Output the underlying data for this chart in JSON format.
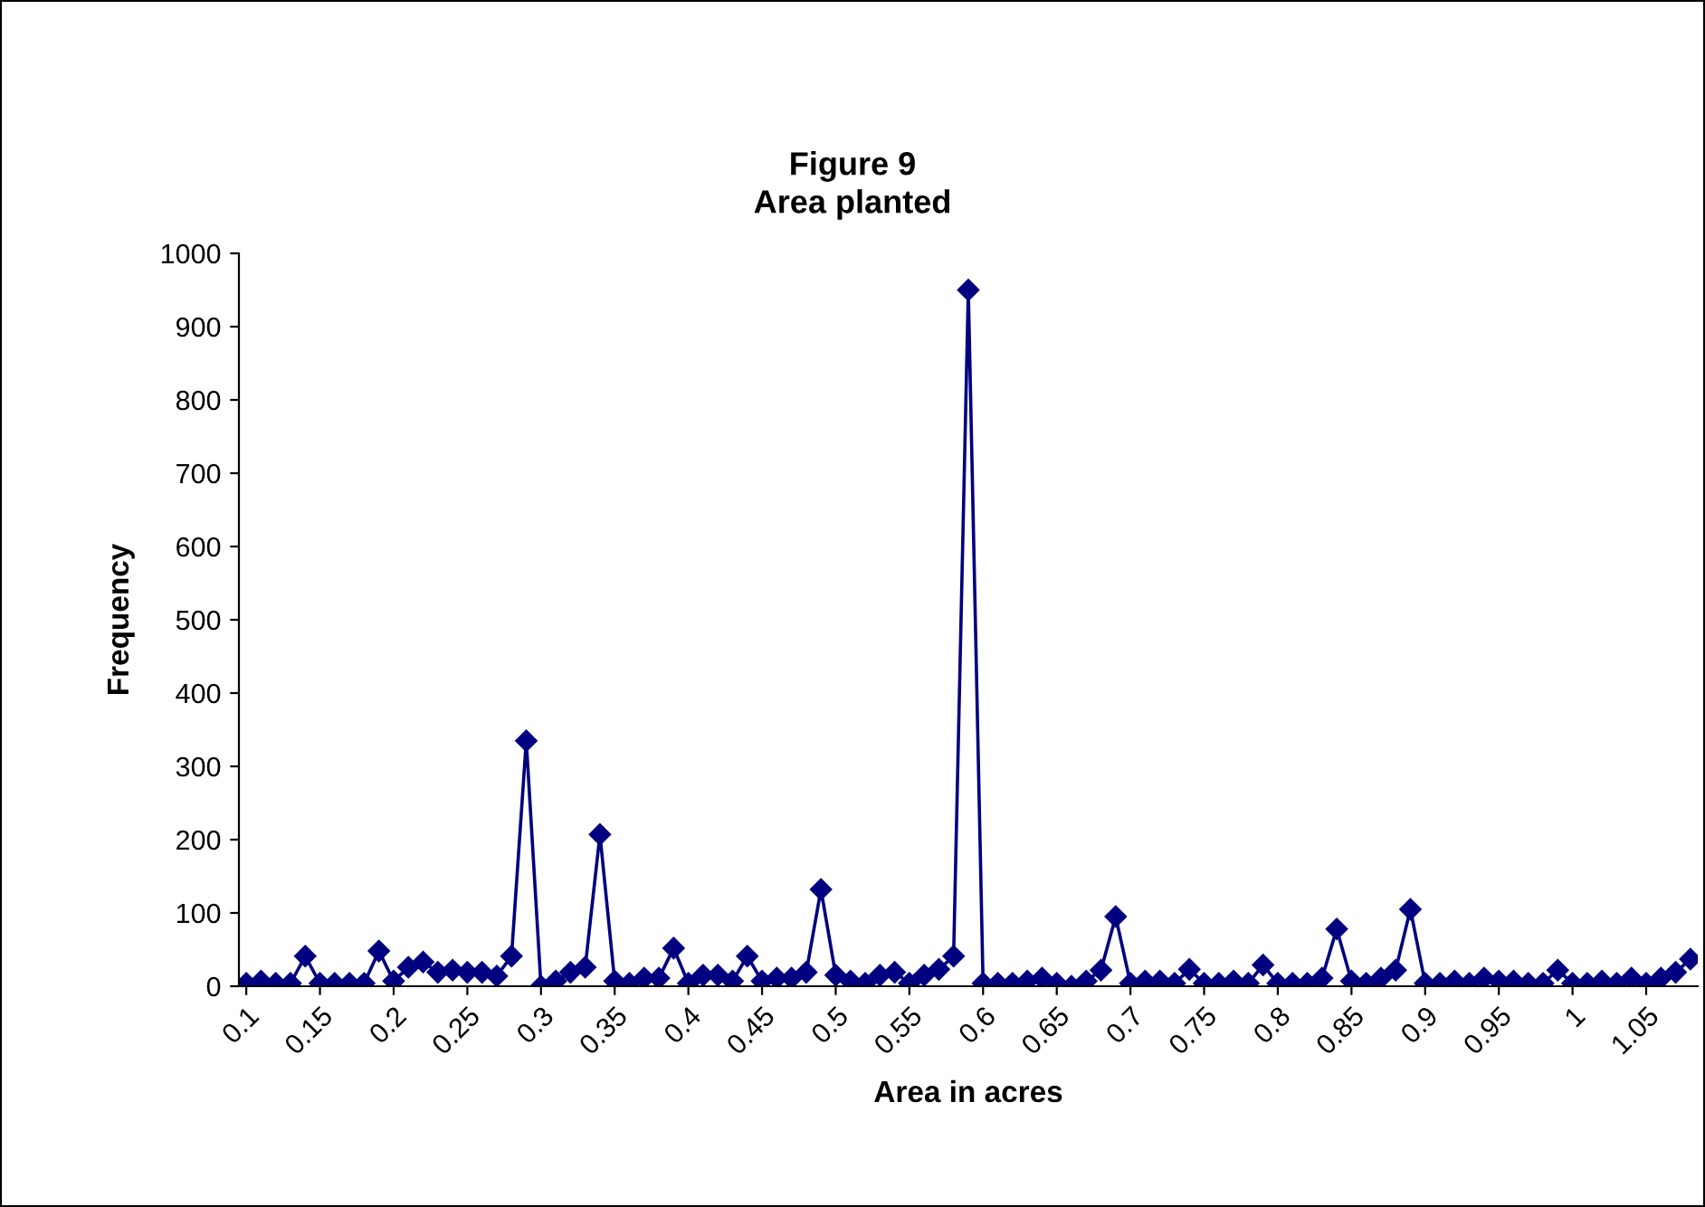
{
  "chart_data": {
    "type": "line",
    "title": "Figure 9",
    "subtitle": "Area planted",
    "xlabel": "Area in acres",
    "ylabel": "Frequency",
    "categories": [
      "0.1",
      null,
      null,
      null,
      null,
      "0.15",
      null,
      null,
      null,
      null,
      "0.2",
      null,
      null,
      null,
      null,
      "0.25",
      null,
      null,
      null,
      null,
      "0.3",
      null,
      null,
      null,
      null,
      "0.35",
      null,
      null,
      null,
      null,
      "0.4",
      null,
      null,
      null,
      null,
      "0.45",
      null,
      null,
      null,
      null,
      "0.5",
      null,
      null,
      null,
      null,
      "0.55",
      null,
      null,
      null,
      null,
      "0.6",
      null,
      null,
      null,
      null,
      "0.65",
      null,
      null,
      null,
      null,
      "0.7",
      null,
      null,
      null,
      null,
      "0.75",
      null,
      null,
      null,
      null,
      "0.8",
      null,
      null,
      null,
      null,
      "0.85",
      null,
      null,
      null,
      null,
      "0.9",
      null,
      null,
      null,
      null,
      "0.95",
      null,
      null,
      null,
      null,
      "1",
      null,
      null,
      null,
      null,
      "1.05",
      null,
      null,
      null
    ],
    "series": [
      {
        "color": "#000080",
        "values": [
          4,
          7,
          4,
          4,
          41,
          4,
          4,
          4,
          4,
          48,
          7,
          26,
          33,
          19,
          22,
          19,
          19,
          14,
          41,
          335,
          0,
          7,
          19,
          26,
          207,
          7,
          4,
          11,
          11,
          52,
          4,
          15,
          15,
          7,
          41,
          7,
          11,
          11,
          19,
          132,
          15,
          7,
          4,
          15,
          19,
          4,
          15,
          23,
          41,
          950,
          4,
          4,
          4,
          7,
          11,
          4,
          0,
          7,
          22,
          95,
          4,
          7,
          7,
          4,
          23,
          4,
          4,
          7,
          4,
          29,
          4,
          4,
          4,
          11,
          78,
          7,
          4,
          11,
          22,
          105,
          4,
          4,
          7,
          4,
          11,
          7,
          7,
          4,
          4,
          22,
          4,
          4,
          7,
          4,
          11,
          4,
          11,
          19,
          37
        ]
      }
    ],
    "ylim": [
      0,
      1000
    ],
    "yticks": [
      0,
      100,
      200,
      300,
      400,
      500,
      600,
      700,
      800,
      900,
      1000
    ],
    "marker": "diamond",
    "line_style": "solid",
    "grid": false,
    "legend": false
  }
}
